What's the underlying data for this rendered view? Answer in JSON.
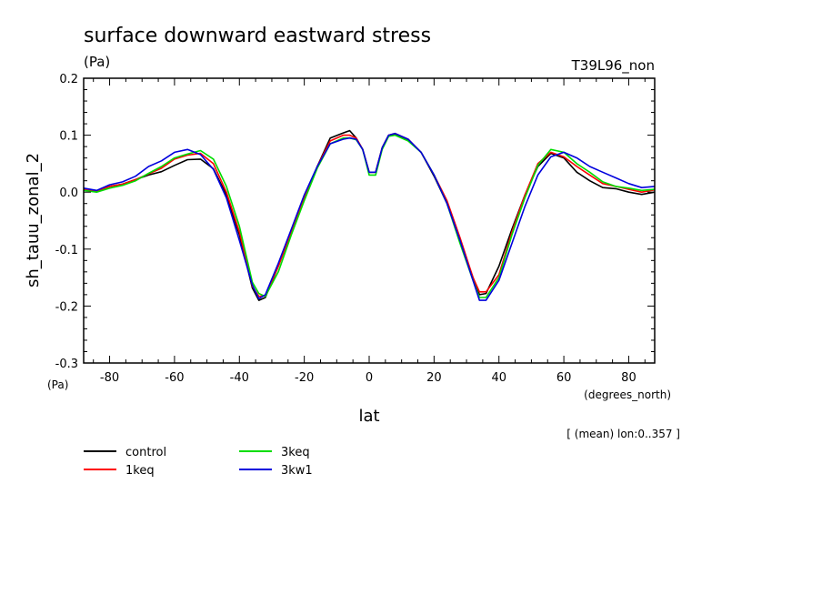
{
  "chart_data": {
    "type": "line",
    "title": "surface downward eastward stress",
    "units_label": "(Pa)",
    "run_label": "T39L96_non",
    "ylabel": "sh_tauu_zonal_2",
    "y_units": "(Pa)",
    "xlabel": "lat",
    "x_units": "(degrees_north)",
    "footnote": "[ (mean) lon:0..357 ]",
    "xlim": [
      -88,
      88
    ],
    "ylim": [
      -0.3,
      0.2
    ],
    "x_ticks": [
      -80,
      -60,
      -40,
      -20,
      0,
      20,
      40,
      60,
      80
    ],
    "x_tick_labels": [
      "-80",
      "-60",
      "-40",
      "-20",
      "0",
      "20",
      "40",
      "60",
      "80"
    ],
    "y_ticks": [
      -0.3,
      -0.2,
      -0.1,
      0.0,
      0.1,
      0.2
    ],
    "y_tick_labels": [
      "-0.3",
      "-0.2",
      "-0.1",
      "0.0",
      "0.1",
      "0.2"
    ],
    "grid": false,
    "legend_position": "bottom-left",
    "x": [
      -88,
      -84,
      -80,
      -76,
      -72,
      -68,
      -64,
      -60,
      -56,
      -52,
      -48,
      -44,
      -40,
      -36,
      -34,
      -32,
      -28,
      -24,
      -20,
      -16,
      -12,
      -8,
      -6,
      -4,
      -2,
      0,
      2,
      4,
      6,
      8,
      12,
      16,
      20,
      24,
      28,
      32,
      34,
      36,
      40,
      44,
      48,
      52,
      56,
      60,
      64,
      68,
      72,
      76,
      80,
      84,
      88
    ],
    "series": [
      {
        "name": "control",
        "color": "#000000",
        "values": [
          0.005,
          0.002,
          0.01,
          0.014,
          0.022,
          0.03,
          0.036,
          0.047,
          0.057,
          0.058,
          0.041,
          -0.005,
          -0.075,
          -0.168,
          -0.19,
          -0.185,
          -0.13,
          -0.07,
          -0.01,
          0.045,
          0.095,
          0.104,
          0.108,
          0.095,
          0.075,
          0.035,
          0.035,
          0.078,
          0.1,
          0.102,
          0.092,
          0.07,
          0.028,
          -0.02,
          -0.085,
          -0.15,
          -0.18,
          -0.178,
          -0.13,
          -0.065,
          -0.005,
          0.045,
          0.068,
          0.06,
          0.035,
          0.02,
          0.008,
          0.006,
          0.0,
          -0.004,
          0.0
        ]
      },
      {
        "name": "1keq",
        "color": "#ff0000",
        "values": [
          0.005,
          0.002,
          0.01,
          0.014,
          0.022,
          0.032,
          0.042,
          0.058,
          0.065,
          0.068,
          0.05,
          0.0,
          -0.07,
          -0.165,
          -0.183,
          -0.182,
          -0.13,
          -0.07,
          -0.01,
          0.045,
          0.09,
          0.1,
          0.1,
          0.095,
          0.075,
          0.035,
          0.035,
          0.078,
          0.1,
          0.103,
          0.093,
          0.07,
          0.03,
          -0.015,
          -0.08,
          -0.15,
          -0.175,
          -0.175,
          -0.145,
          -0.07,
          -0.005,
          0.05,
          0.07,
          0.062,
          0.045,
          0.03,
          0.015,
          0.01,
          0.005,
          0.0,
          0.004
        ]
      },
      {
        "name": "3keq",
        "color": "#00dd00",
        "values": [
          0.003,
          0.0,
          0.007,
          0.012,
          0.02,
          0.033,
          0.045,
          0.06,
          0.067,
          0.073,
          0.058,
          0.01,
          -0.06,
          -0.158,
          -0.178,
          -0.183,
          -0.14,
          -0.075,
          -0.015,
          0.042,
          0.085,
          0.095,
          0.095,
          0.092,
          0.075,
          0.03,
          0.03,
          0.075,
          0.098,
          0.1,
          0.09,
          0.07,
          0.03,
          -0.02,
          -0.09,
          -0.155,
          -0.185,
          -0.185,
          -0.15,
          -0.075,
          -0.01,
          0.047,
          0.075,
          0.07,
          0.05,
          0.035,
          0.018,
          0.01,
          0.007,
          0.003,
          0.005
        ]
      },
      {
        "name": "3kw1",
        "color": "#0000dd",
        "values": [
          0.007,
          0.003,
          0.013,
          0.018,
          0.028,
          0.045,
          0.055,
          0.07,
          0.075,
          0.066,
          0.04,
          -0.01,
          -0.085,
          -0.163,
          -0.187,
          -0.18,
          -0.125,
          -0.065,
          -0.005,
          0.045,
          0.085,
          0.093,
          0.095,
          0.093,
          0.075,
          0.035,
          0.035,
          0.078,
          0.1,
          0.103,
          0.093,
          0.07,
          0.03,
          -0.02,
          -0.085,
          -0.155,
          -0.19,
          -0.19,
          -0.155,
          -0.09,
          -0.025,
          0.03,
          0.062,
          0.07,
          0.06,
          0.045,
          0.035,
          0.025,
          0.015,
          0.008,
          0.01
        ]
      }
    ]
  }
}
